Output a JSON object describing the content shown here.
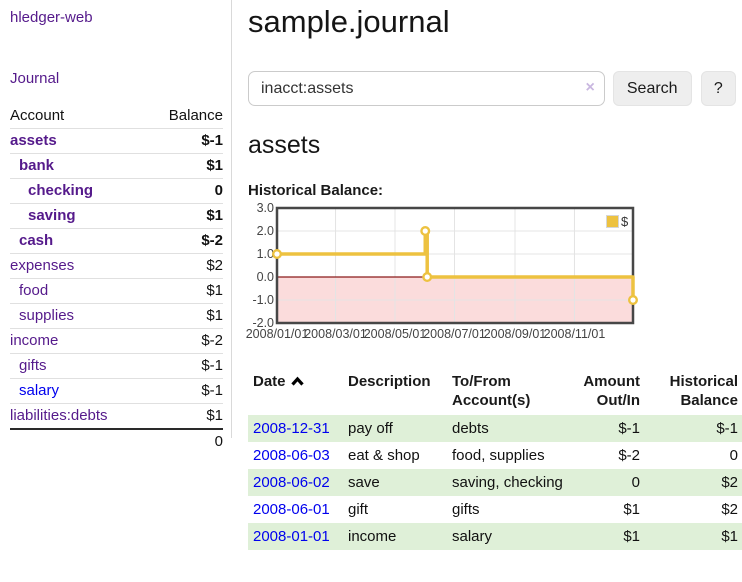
{
  "colors": {
    "link_purple": "#551a8b",
    "link_blue": "#0000ee",
    "negative_strong": "#971717",
    "negative_faded": "#c47c7c",
    "row_green": "#dff0d8",
    "series_yellow": "#edc240",
    "negative_region_pink": "#fbdcdc",
    "zero_line_red": "#8b1a1a"
  },
  "sidebar": {
    "brand": "hledger-web",
    "nav": [
      {
        "label": "Journal"
      }
    ],
    "accounts": {
      "headers": {
        "account": "Account",
        "balance": "Balance"
      },
      "rows": [
        {
          "name": "assets",
          "balance": "$-1",
          "depth": 0,
          "bold": true,
          "balance_tone": "neg"
        },
        {
          "name": "bank",
          "balance": "$1",
          "depth": 1,
          "bold": true,
          "balance_tone": "pos"
        },
        {
          "name": "checking",
          "balance": "0",
          "depth": 2,
          "bold": true,
          "balance_tone": "pos"
        },
        {
          "name": "saving",
          "balance": "$1",
          "depth": 2,
          "bold": true,
          "balance_tone": "pos"
        },
        {
          "name": "cash",
          "balance": "$-2",
          "depth": 1,
          "bold": true,
          "balance_tone": "neg"
        },
        {
          "name": "expenses",
          "balance": "$2",
          "depth": 0,
          "bold": false,
          "balance_tone": "pos"
        },
        {
          "name": "food",
          "balance": "$1",
          "depth": 1,
          "bold": false,
          "balance_tone": "pos"
        },
        {
          "name": "supplies",
          "balance": "$1",
          "depth": 1,
          "bold": false,
          "balance_tone": "pos"
        },
        {
          "name": "income",
          "balance": "$-2",
          "depth": 0,
          "bold": false,
          "balance_tone": "neg_faded"
        },
        {
          "name": "gifts",
          "balance": "$-1",
          "depth": 1,
          "bold": false,
          "balance_tone": "neg_faded"
        },
        {
          "name": "salary",
          "balance": "$-1",
          "depth": 1,
          "bold": false,
          "balance_tone": "neg_faded",
          "link_tone": "blue"
        },
        {
          "name": "liabilities:debts",
          "balance": "$1",
          "depth": 0,
          "bold": false,
          "balance_tone": "pos"
        }
      ],
      "total": "0"
    }
  },
  "main": {
    "title": "sample.journal",
    "search": {
      "value": "inacct:assets",
      "clear_label": "×",
      "submit_label": "Search",
      "help_label": "?"
    },
    "account_heading": "assets",
    "section_label": "Historical Balance:"
  },
  "chart_data": {
    "type": "line",
    "title": "Historical Balance",
    "step": true,
    "series": [
      {
        "name": "$",
        "color": "#edc240",
        "points": [
          [
            "2008-01-01",
            1
          ],
          [
            "2008-06-01",
            2
          ],
          [
            "2008-06-03",
            0
          ],
          [
            "2008-12-31",
            -1
          ]
        ]
      }
    ],
    "x_range": [
      "2008-01-01",
      "2008-12-31"
    ],
    "y_range": [
      -2,
      3
    ],
    "y_ticks": [
      {
        "value": 3,
        "label": "3.0"
      },
      {
        "value": 2,
        "label": "2.0"
      },
      {
        "value": 1,
        "label": "1.0"
      },
      {
        "value": 0,
        "label": "0.0"
      },
      {
        "value": -1,
        "label": "-1.0"
      },
      {
        "value": -2,
        "label": "-2.0"
      }
    ],
    "x_ticks": [
      {
        "date": "2008-01-01",
        "label": "2008/01/01"
      },
      {
        "date": "2008-03-01",
        "label": "2008/03/01"
      },
      {
        "date": "2008-05-01",
        "label": "2008/05/01"
      },
      {
        "date": "2008-07-01",
        "label": "2008/07/01"
      },
      {
        "date": "2008-09-01",
        "label": "2008/09/01"
      },
      {
        "date": "2008-11-01",
        "label": "2008/11/01"
      }
    ],
    "grid": true,
    "legend": {
      "label": "$",
      "swatch_color": "#edc240",
      "position": "top-right"
    },
    "negative_fill": "#fbdcdc",
    "zero_line_color": "#8b1a1a"
  },
  "register": {
    "headers": {
      "date": "Date",
      "description": "Description",
      "accounts": "To/From Account(s)",
      "amount": "Amount Out/In",
      "balance": "Historical Balance"
    },
    "sort": {
      "column": "date",
      "direction": "ascending"
    },
    "rows": [
      {
        "date": "2008-12-31",
        "description": "pay off",
        "accounts": "debts",
        "amount": "$-1",
        "balance": "$-1",
        "amount_tone": "neg",
        "balance_tone": "neg",
        "shaded": true
      },
      {
        "date": "2008-06-03",
        "description": "eat & shop",
        "accounts": "food, supplies",
        "amount": "$-2",
        "balance": "0",
        "amount_tone": "neg",
        "balance_tone": "pos",
        "shaded": false
      },
      {
        "date": "2008-06-02",
        "description": "save",
        "accounts": "saving, checking",
        "amount": "0",
        "balance": "$2",
        "amount_tone": "pos",
        "balance_tone": "pos",
        "shaded": true
      },
      {
        "date": "2008-06-01",
        "description": "gift",
        "accounts": "gifts",
        "amount": "$1",
        "balance": "$2",
        "amount_tone": "pos",
        "balance_tone": "pos",
        "shaded": false
      },
      {
        "date": "2008-01-01",
        "description": "income",
        "accounts": "salary",
        "amount": "$1",
        "balance": "$1",
        "amount_tone": "pos",
        "balance_tone": "pos",
        "shaded": true
      }
    ]
  }
}
